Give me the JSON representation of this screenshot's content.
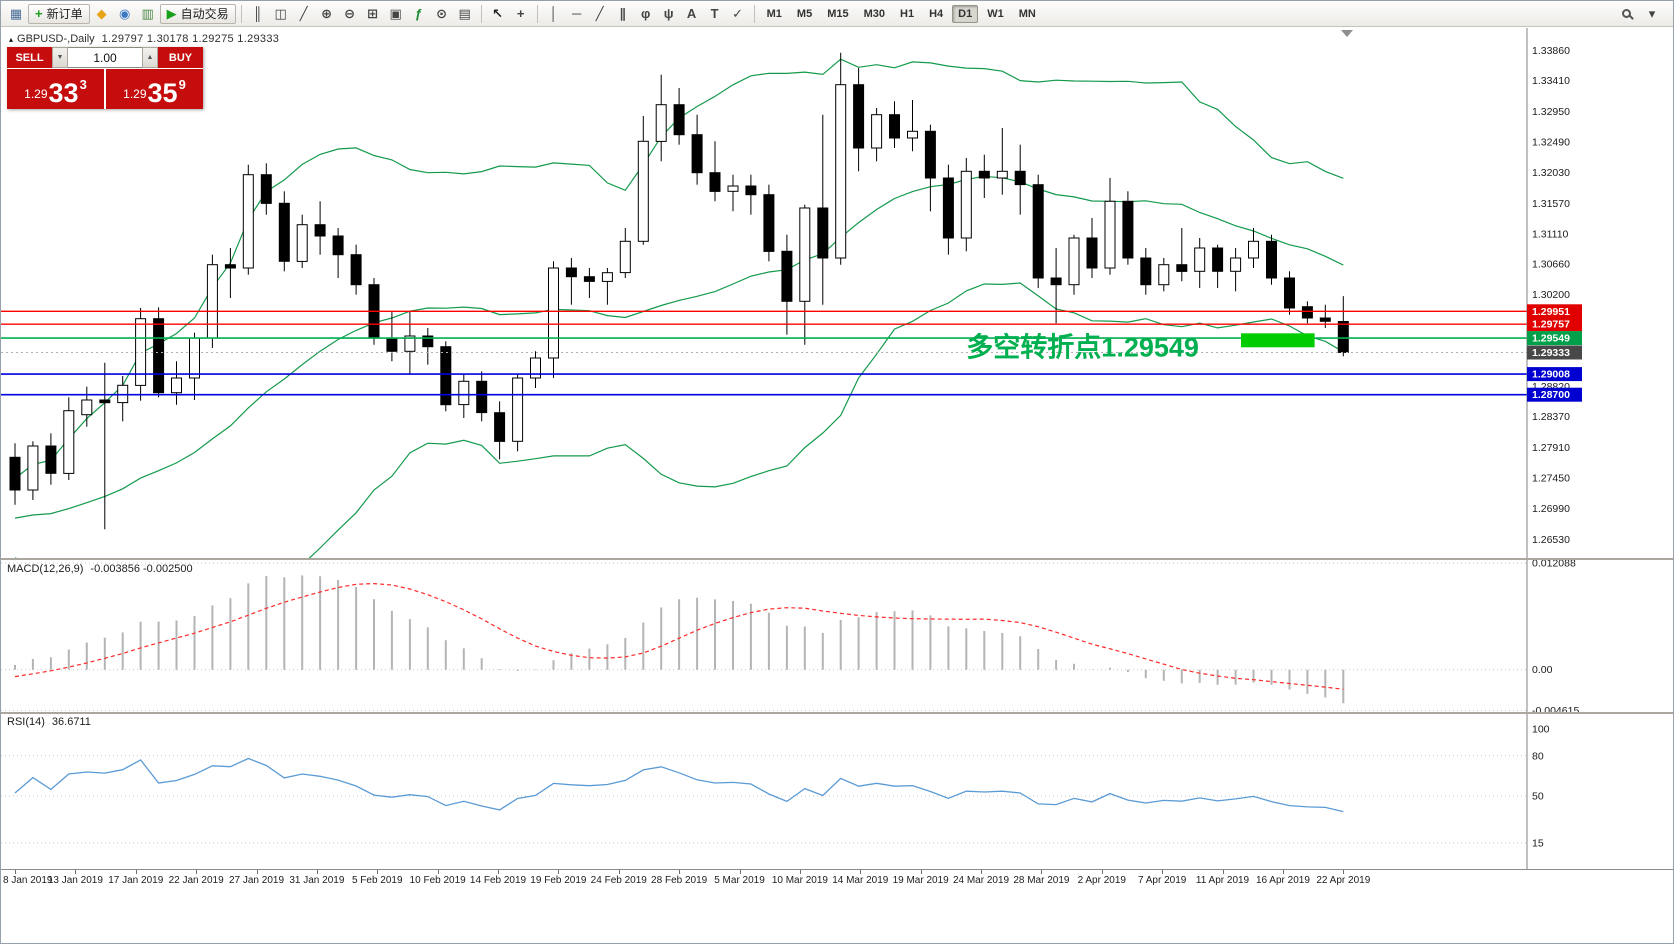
{
  "window": {
    "marker": "▴",
    "symbol_title": "GBPUSD-,Daily",
    "ohlc_text": "1.29797 1.30178 1.29275 1.29333"
  },
  "toolbar": {
    "groups": [
      {
        "name": "file",
        "items": [
          {
            "name": "new-chart-icon",
            "glyph": "▦",
            "color": "#4a6d96"
          },
          {
            "name": "new-order-button",
            "glyph": "+",
            "color": "#18a018",
            "label": "新订单"
          },
          {
            "name": "metaquotes-app-icon",
            "glyph": "◆",
            "color": "#e8a418"
          },
          {
            "name": "market-watch-icon",
            "glyph": "◉",
            "color": "#3a78c2"
          },
          {
            "name": "data-window-icon",
            "glyph": "▥",
            "color": "#4a8a4a"
          },
          {
            "name": "auto-trading-button",
            "glyph": "▶",
            "color": "#18a018",
            "label": "自动交易"
          }
        ]
      },
      {
        "name": "chart-controls",
        "items": [
          {
            "name": "bar-chart-icon",
            "glyph": "║",
            "color": "#444444"
          },
          {
            "name": "candlestick-chart-icon",
            "glyph": "◫",
            "color": "#444444"
          },
          {
            "name": "line-chart-icon",
            "glyph": "╱",
            "color": "#444444"
          },
          {
            "name": "zoom-in-icon",
            "glyph": "⊕",
            "color": "#444444"
          },
          {
            "name": "zoom-out-icon",
            "glyph": "⊖",
            "color": "#444444"
          },
          {
            "name": "tile-windows-icon",
            "glyph": "⊞",
            "color": "#444444"
          },
          {
            "name": "auto-arrange-icon",
            "glyph": "▣",
            "color": "#444444"
          },
          {
            "name": "indicators-icon",
            "glyph": "ƒ",
            "color": "#1a8a2e"
          },
          {
            "name": "periods-icon",
            "glyph": "⊙",
            "color": "#444444"
          },
          {
            "name": "templates-icon",
            "glyph": "▤",
            "color": "#444444"
          }
        ]
      },
      {
        "name": "cursor-tools",
        "items": [
          {
            "name": "cursor-icon",
            "glyph": "↖",
            "color": "#222222"
          },
          {
            "name": "crosshair-icon",
            "glyph": "+",
            "color": "#444444"
          }
        ]
      },
      {
        "name": "object-tools",
        "items": [
          {
            "name": "vertical-line-icon",
            "glyph": "│",
            "color": "#444444"
          },
          {
            "name": "horizontal-line-icon",
            "glyph": "─",
            "color": "#444444"
          },
          {
            "name": "trendline-icon",
            "glyph": "╱",
            "color": "#444444"
          },
          {
            "name": "equidistant-channel-icon",
            "glyph": "∥",
            "color": "#444444"
          },
          {
            "name": "fibonacci-icon",
            "glyph": "φ",
            "color": "#444444"
          },
          {
            "name": "andrews-pitchfork-icon",
            "glyph": "ψ",
            "color": "#444444"
          },
          {
            "name": "text-icon",
            "glyph": "A",
            "color": "#444444"
          },
          {
            "name": "text-label-icon",
            "glyph": "T",
            "color": "#444444"
          },
          {
            "name": "arrows-icon",
            "glyph": "✓",
            "color": "#444444"
          }
        ]
      }
    ],
    "timeframes": [
      {
        "label": "M1"
      },
      {
        "label": "M5"
      },
      {
        "label": "M15"
      },
      {
        "label": "M30"
      },
      {
        "label": "H1"
      },
      {
        "label": "H4"
      },
      {
        "label": "D1",
        "active": true
      },
      {
        "label": "W1"
      },
      {
        "label": "MN"
      }
    ],
    "right_icons": [
      {
        "name": "search-button",
        "icon": "magnifier"
      },
      {
        "name": "quick-menu-button",
        "glyph": "▾",
        "color": "#444444"
      }
    ]
  },
  "trade_panel": {
    "sell_label": "SELL",
    "buy_label": "BUY",
    "volume": "1.00",
    "vol_down_glyph": "▼",
    "vol_up_glyph": "▲",
    "sell_price_small": "1.29",
    "sell_price_big": "33",
    "sell_price_sup": "3",
    "buy_price_small": "1.29",
    "buy_price_big": "35",
    "buy_price_sup": "9"
  },
  "chart_data": {
    "type": "candlestick",
    "symbol": "GBPUSD",
    "timeframe": "Daily",
    "x_labels": [
      "8 Jan 2019",
      "13 Jan 2019",
      "17 Jan 2019",
      "22 Jan 2019",
      "27 Jan 2019",
      "31 Jan 2019",
      "5 Feb 2019",
      "10 Feb 2019",
      "14 Feb 2019",
      "19 Feb 2019",
      "24 Feb 2019",
      "28 Feb 2019",
      "5 Mar 2019",
      "10 Mar 2019",
      "14 Mar 2019",
      "19 Mar 2019",
      "24 Mar 2019",
      "28 Mar 2019",
      "2 Apr 2019",
      "7 Apr 2019",
      "11 Apr 2019",
      "16 Apr 2019",
      "22 Apr 2019"
    ],
    "y_axis": {
      "max": 1.342,
      "min": 1.2625,
      "labels": [
        1.3386,
        1.3341,
        1.3295,
        1.3249,
        1.3203,
        1.3157,
        1.3111,
        1.3066,
        1.302,
        1.2882,
        1.2837,
        1.2791,
        1.2745,
        1.2699,
        1.2653
      ]
    },
    "pre_history_closes": [
      1.272,
      1.27,
      1.271,
      1.2695,
      1.2685,
      1.267,
      1.2655,
      1.2665,
      1.265,
      1.266,
      1.2645,
      1.2655,
      1.267,
      1.266,
      1.2675,
      1.2685,
      1.2695,
      1.2705,
      1.273,
      1.276
    ],
    "candles": [
      [
        1.2776,
        1.2797,
        1.2705,
        1.2727
      ],
      [
        1.2727,
        1.28,
        1.2712,
        1.2793
      ],
      [
        1.2793,
        1.2812,
        1.2735,
        1.2752
      ],
      [
        1.2752,
        1.2866,
        1.2742,
        1.2846
      ],
      [
        1.284,
        1.2882,
        1.2822,
        1.2862
      ],
      [
        1.2862,
        1.2918,
        1.2668,
        1.2858
      ],
      [
        1.2858,
        1.2898,
        1.283,
        1.2884
      ],
      [
        1.2884,
        1.3,
        1.2861,
        1.2984
      ],
      [
        1.2984,
        1.3001,
        1.2866,
        1.2873
      ],
      [
        1.2873,
        1.292,
        1.2855,
        1.2895
      ],
      [
        1.2895,
        1.2963,
        1.2862,
        1.2955
      ],
      [
        1.2955,
        1.308,
        1.294,
        1.3065
      ],
      [
        1.3065,
        1.309,
        1.3015,
        1.306
      ],
      [
        1.306,
        1.3215,
        1.305,
        1.32
      ],
      [
        1.32,
        1.3217,
        1.314,
        1.3157
      ],
      [
        1.3157,
        1.3175,
        1.3055,
        1.307
      ],
      [
        1.307,
        1.314,
        1.306,
        1.3125
      ],
      [
        1.3125,
        1.316,
        1.308,
        1.3108
      ],
      [
        1.3108,
        1.312,
        1.3045,
        1.308
      ],
      [
        1.308,
        1.3095,
        1.302,
        1.3035
      ],
      [
        1.3035,
        1.3045,
        1.2945,
        1.2955
      ],
      [
        1.2955,
        1.2995,
        1.292,
        1.2935
      ],
      [
        1.2935,
        1.2995,
        1.29,
        1.2958
      ],
      [
        1.2958,
        1.297,
        1.2915,
        1.2942
      ],
      [
        1.2942,
        1.295,
        1.2845,
        1.2855
      ],
      [
        1.2855,
        1.29,
        1.2835,
        1.289
      ],
      [
        1.289,
        1.2905,
        1.283,
        1.2843
      ],
      [
        1.2843,
        1.286,
        1.2773,
        1.28
      ],
      [
        1.28,
        1.29,
        1.2785,
        1.2895
      ],
      [
        1.2895,
        1.2935,
        1.288,
        1.2925
      ],
      [
        1.2925,
        1.307,
        1.2895,
        1.306
      ],
      [
        1.306,
        1.3075,
        1.3005,
        1.3047
      ],
      [
        1.3047,
        1.306,
        1.3015,
        1.304
      ],
      [
        1.304,
        1.306,
        1.3005,
        1.3053
      ],
      [
        1.3053,
        1.312,
        1.3045,
        1.31
      ],
      [
        1.31,
        1.3288,
        1.3095,
        1.325
      ],
      [
        1.325,
        1.335,
        1.322,
        1.3305
      ],
      [
        1.3305,
        1.333,
        1.3245,
        1.326
      ],
      [
        1.326,
        1.329,
        1.3185,
        1.3203
      ],
      [
        1.3203,
        1.325,
        1.316,
        1.3175
      ],
      [
        1.3175,
        1.32,
        1.3145,
        1.3183
      ],
      [
        1.3183,
        1.32,
        1.314,
        1.317
      ],
      [
        1.317,
        1.3185,
        1.307,
        1.3085
      ],
      [
        1.3085,
        1.311,
        1.296,
        1.301
      ],
      [
        1.301,
        1.3155,
        1.2945,
        1.315
      ],
      [
        1.315,
        1.329,
        1.3005,
        1.3075
      ],
      [
        1.3075,
        1.3383,
        1.3065,
        1.3335
      ],
      [
        1.3335,
        1.336,
        1.3205,
        1.324
      ],
      [
        1.324,
        1.33,
        1.322,
        1.329
      ],
      [
        1.329,
        1.331,
        1.324,
        1.3255
      ],
      [
        1.3255,
        1.3312,
        1.3235,
        1.3265
      ],
      [
        1.3265,
        1.3275,
        1.3145,
        1.3195
      ],
      [
        1.3195,
        1.3215,
        1.308,
        1.3105
      ],
      [
        1.3105,
        1.3225,
        1.3085,
        1.3205
      ],
      [
        1.3205,
        1.323,
        1.3165,
        1.3195
      ],
      [
        1.3195,
        1.327,
        1.317,
        1.3205
      ],
      [
        1.3205,
        1.3245,
        1.314,
        1.3185
      ],
      [
        1.3185,
        1.32,
        1.303,
        1.3045
      ],
      [
        1.3045,
        1.309,
        1.2977,
        1.3035
      ],
      [
        1.3035,
        1.311,
        1.302,
        1.3105
      ],
      [
        1.3105,
        1.3135,
        1.3045,
        1.306
      ],
      [
        1.306,
        1.3195,
        1.305,
        1.316
      ],
      [
        1.316,
        1.3175,
        1.3065,
        1.3075
      ],
      [
        1.3075,
        1.309,
        1.302,
        1.3035
      ],
      [
        1.3035,
        1.3075,
        1.3025,
        1.3065
      ],
      [
        1.3065,
        1.312,
        1.304,
        1.3055
      ],
      [
        1.3055,
        1.3105,
        1.303,
        1.309
      ],
      [
        1.309,
        1.3095,
        1.303,
        1.3055
      ],
      [
        1.3055,
        1.309,
        1.3025,
        1.3075
      ],
      [
        1.3075,
        1.312,
        1.306,
        1.31
      ],
      [
        1.31,
        1.311,
        1.3035,
        1.3045
      ],
      [
        1.3045,
        1.3055,
        1.299,
        1.3
      ],
      [
        1.3002,
        1.301,
        1.2977,
        1.2985
      ],
      [
        1.2985,
        1.3005,
        1.297,
        1.298
      ],
      [
        1.29797,
        1.30178,
        1.29275,
        1.29333
      ]
    ],
    "bollinger": {
      "period": 20,
      "deviation": 2,
      "color": "#149a4c"
    },
    "hlines": [
      {
        "price": 1.29951,
        "tag": "1.29951",
        "color": "#ff0000",
        "tag_color": "#e00000",
        "width": 1.4
      },
      {
        "price": 1.29757,
        "tag": "1.29757",
        "color": "#ff0000",
        "tag_color": "#e00000",
        "width": 1.4
      },
      {
        "price": 1.29549,
        "tag": "1.29549",
        "color": "#00b050",
        "tag_color": "#00a04a",
        "width": 1.6
      },
      {
        "price": 1.29333,
        "tag": "1.29333",
        "color": "#b0b0b0",
        "tag_color": "#484848",
        "width": 1,
        "dash": "2 3"
      },
      {
        "price": 1.29008,
        "tag": "1.29008",
        "color": "#0000e0",
        "tag_color": "#0000d0",
        "width": 1.6
      },
      {
        "price": 1.287,
        "tag": "1.28700",
        "color": "#0000e0",
        "tag_color": "#0000d0",
        "width": 1.6
      }
    ],
    "highlight_rect": {
      "bar_start": 68.3,
      "bar_end": 72.4,
      "price_top": 1.2962,
      "price_bottom": 1.2941,
      "color": "#00cc00"
    },
    "annotation": {
      "text": "多空转折点1.29549",
      "bar": 53,
      "price": 1.2927,
      "color": "#00b050",
      "font_size": 27
    },
    "macd": {
      "label": "MACD(12,26,9)",
      "values_text": "-0.003856 -0.002500",
      "fast": 12,
      "slow": 26,
      "signal": 9,
      "scale_max": 0.01243,
      "scale_min": -0.0048,
      "axis_values": [
        0.012088,
        0,
        -0.004615
      ],
      "axis_labels": [
        "0.012088",
        "0.00",
        "-0.004615"
      ],
      "hist_color": "#b4b4b4",
      "signal_color": "#ff2a2a"
    },
    "rsi": {
      "label": "RSI(14)",
      "value_text": "36.6711",
      "period": 14,
      "color": "#5b9bd5",
      "axis_values": [
        100,
        80,
        50,
        15
      ],
      "axis_labels": [
        "100",
        "80",
        "50",
        "15"
      ],
      "levels": [
        80,
        50,
        15
      ]
    }
  }
}
